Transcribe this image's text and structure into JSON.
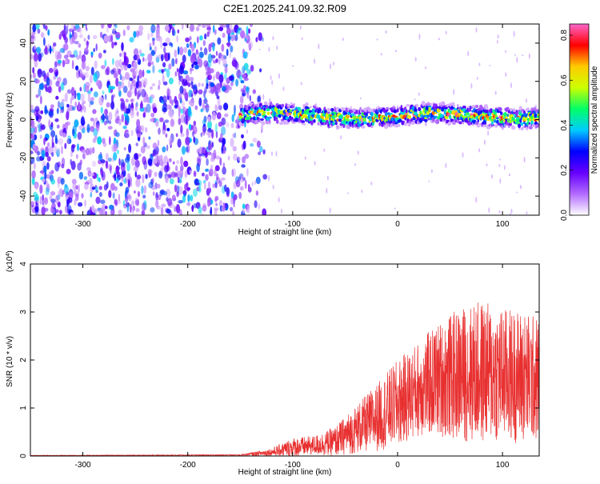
{
  "figure_title": "C2E1.2025.241.09.32.R09",
  "chart_data": [
    {
      "type": "heatmap",
      "title": "C2E1.2025.241.09.32.R09",
      "xlabel": "Height of straight line (km)",
      "ylabel": "Frequency (Hz)",
      "xlim": [
        -350,
        135
      ],
      "ylim": [
        -50,
        50
      ],
      "x_ticks": [
        -300,
        -200,
        -100,
        0,
        100
      ],
      "x_tick_labels": [
        "-300",
        "-200",
        "-100",
        "0",
        "100"
      ],
      "y_ticks": [
        -40,
        -20,
        0,
        20,
        40
      ],
      "y_tick_labels": [
        "-40",
        "-20",
        "0",
        "20",
        "40"
      ],
      "grid": false,
      "noise_region_x": [
        -350,
        -140
      ],
      "signal_band": {
        "x_start": -150,
        "x_end": 135,
        "center_hz": 2,
        "halfwidth_hz": 5
      },
      "colorbar": {
        "label": "Normalized spectral amplitude",
        "range": [
          0,
          0.85
        ],
        "ticks": [
          0.0,
          0.2,
          0.4,
          0.6,
          0.8
        ],
        "tick_labels": [
          "0.0",
          "0.2",
          "0.4",
          "0.6",
          "0.8"
        ],
        "colors": [
          "#ffffff",
          "#b36bff",
          "#6600ff",
          "#0000ff",
          "#00ccff",
          "#00ff66",
          "#ccff00",
          "#ffcc00",
          "#ff0000",
          "#ff66cc"
        ]
      }
    },
    {
      "type": "line",
      "xlabel": "Height of straight line (km)",
      "ylabel": "SNR (10 * v/v)",
      "y_scale_label": "(x10",
      "y_scale_exp": "4",
      "y_scale_close": ")",
      "xlim": [
        -350,
        135
      ],
      "ylim": [
        0,
        4
      ],
      "x_ticks": [
        -300,
        -200,
        -100,
        0,
        100
      ],
      "x_tick_labels": [
        "-300",
        "-200",
        "-100",
        "0",
        "100"
      ],
      "y_ticks": [
        0,
        1,
        2,
        3,
        4
      ],
      "y_tick_labels": [
        "0",
        "1",
        "2",
        "3",
        "4"
      ],
      "grid": false,
      "series": [
        {
          "name": "SNR",
          "color": "#e83030",
          "envelope_x": [
            -350,
            -150,
            -120,
            -100,
            -80,
            -60,
            -40,
            -20,
            0,
            20,
            40,
            60,
            80,
            100,
            120,
            135
          ],
          "envelope_mean": [
            0.01,
            0.02,
            0.08,
            0.18,
            0.22,
            0.3,
            0.55,
            0.8,
            1.1,
            1.4,
            1.6,
            1.7,
            1.75,
            1.7,
            1.65,
            1.6
          ],
          "envelope_amp": [
            0.005,
            0.01,
            0.08,
            0.2,
            0.2,
            0.3,
            0.5,
            0.7,
            0.9,
            1.0,
            1.2,
            1.4,
            1.5,
            1.4,
            1.4,
            1.3
          ]
        }
      ]
    }
  ]
}
